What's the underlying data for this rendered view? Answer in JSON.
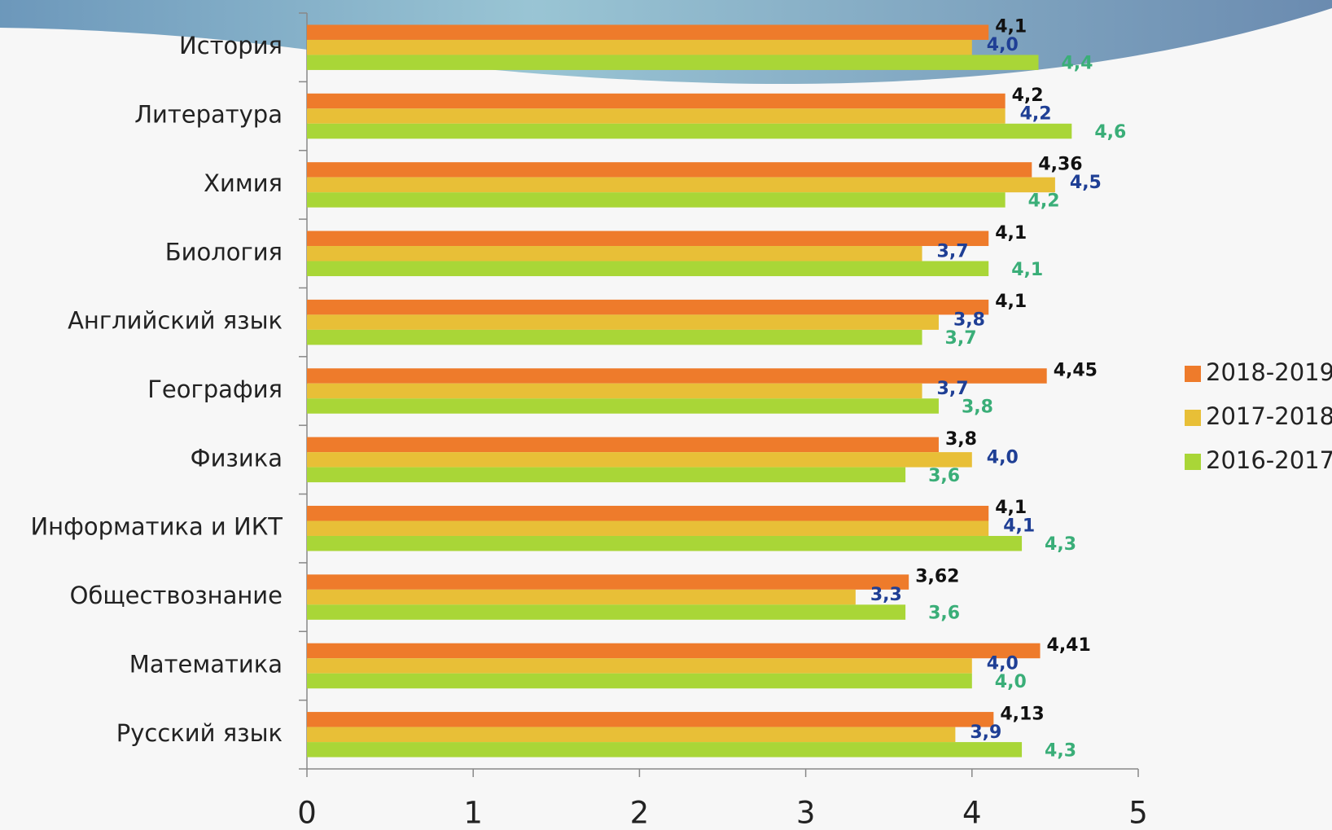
{
  "chart_data": {
    "type": "bar",
    "orientation": "horizontal",
    "categories": [
      "История",
      "Литература",
      "Химия",
      "Биология",
      "Английский язык",
      "География",
      "Физика",
      "Информатика и ИКТ",
      "Обществознание",
      "Математика",
      "Русский язык"
    ],
    "series": [
      {
        "name": "2018-2019",
        "color": "#ee7b2b",
        "label_color": "#111111",
        "values": [
          4.1,
          4.2,
          4.36,
          4.1,
          4.1,
          4.45,
          3.8,
          4.1,
          3.62,
          4.41,
          4.13
        ],
        "value_labels": [
          "4,1",
          "4,2",
          "4,36",
          "4,1",
          "4,1",
          "4,45",
          "3,8",
          "4,1",
          "3,62",
          "4,41",
          "4,13"
        ]
      },
      {
        "name": "2017-2018",
        "color": "#e8bf37",
        "label_color": "#1f3f95",
        "values": [
          4.0,
          4.2,
          4.5,
          3.7,
          3.8,
          3.7,
          4.0,
          4.1,
          3.3,
          4.0,
          3.9
        ],
        "value_labels": [
          "4,0",
          "4,2",
          "4,5",
          "3,7",
          "3,8",
          "3,7",
          "4,0",
          "4,1",
          "3,3",
          "4,0",
          "3,9"
        ]
      },
      {
        "name": "2016-2017",
        "color": "#a9d637",
        "label_color": "#3aae78",
        "values": [
          4.4,
          4.6,
          4.2,
          4.1,
          3.7,
          3.8,
          3.6,
          4.3,
          3.6,
          4.0,
          4.3
        ],
        "value_labels": [
          "4,4",
          "4,6",
          "4,2",
          "4,1",
          "3,7",
          "3,8",
          "3,6",
          "4,3",
          "3,6",
          "4,0",
          "4,3"
        ]
      }
    ],
    "xlim": [
      0,
      5
    ],
    "xticks": [
      0,
      1,
      2,
      3,
      4,
      5
    ],
    "legend": "right"
  }
}
